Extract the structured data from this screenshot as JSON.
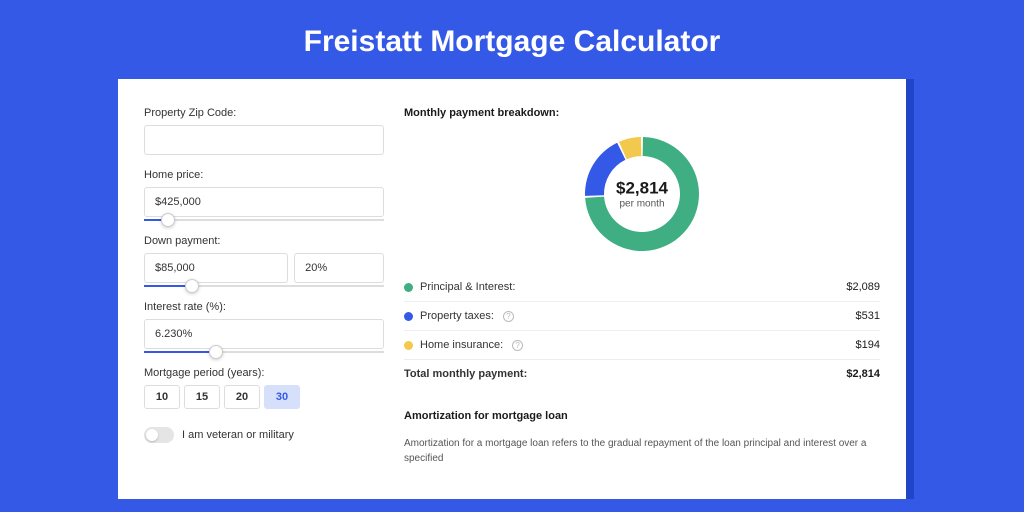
{
  "page": {
    "title": "Freistatt Mortgage Calculator",
    "background_color": "#3459e6",
    "card_background": "#ffffff",
    "card_shadow_color": "#2046c7"
  },
  "form": {
    "zip": {
      "label": "Property Zip Code:",
      "value": ""
    },
    "home_price": {
      "label": "Home price:",
      "value": "$425,000",
      "slider_pct": 10
    },
    "down_payment": {
      "label": "Down payment:",
      "value": "$85,000",
      "percent_value": "20%",
      "slider_pct": 20
    },
    "interest_rate": {
      "label": "Interest rate (%):",
      "value": "6.230%",
      "slider_pct": 30
    },
    "mortgage_period": {
      "label": "Mortgage period (years):",
      "options": [
        "10",
        "15",
        "20",
        "30"
      ],
      "selected": "30"
    },
    "veteran": {
      "label": "I am veteran or military",
      "checked": false
    }
  },
  "breakdown": {
    "heading": "Monthly payment breakdown:",
    "donut": {
      "center_amount": "$2,814",
      "center_sub": "per month",
      "slices": [
        {
          "label": "Principal & Interest",
          "value": 2089,
          "color": "#3fae82",
          "pct": 74.2
        },
        {
          "label": "Property taxes",
          "value": 531,
          "color": "#3459e6",
          "pct": 18.9
        },
        {
          "label": "Home insurance",
          "value": 194,
          "color": "#f2c94c",
          "pct": 6.9
        }
      ]
    },
    "legend": [
      {
        "label": "Principal & Interest:",
        "value": "$2,089",
        "color": "#3fae82",
        "info": false
      },
      {
        "label": "Property taxes:",
        "value": "$531",
        "color": "#3459e6",
        "info": true
      },
      {
        "label": "Home insurance:",
        "value": "$194",
        "color": "#f2c94c",
        "info": true
      }
    ],
    "total": {
      "label": "Total monthly payment:",
      "value": "$2,814"
    }
  },
  "amortization": {
    "heading": "Amortization for mortgage loan",
    "text": "Amortization for a mortgage loan refers to the gradual repayment of the loan principal and interest over a specified"
  }
}
